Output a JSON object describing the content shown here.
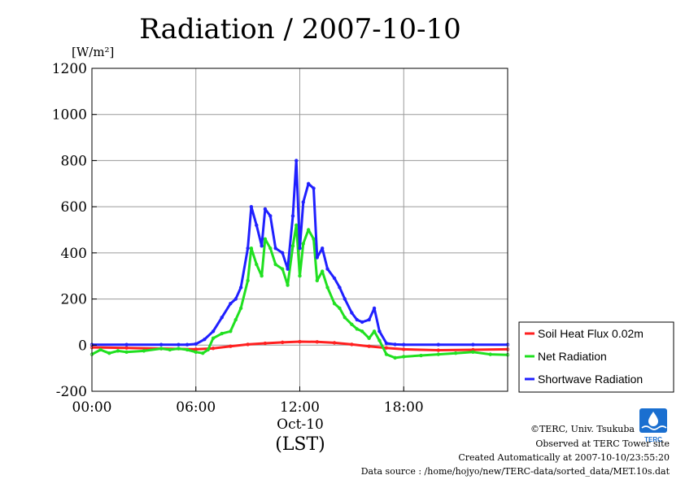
{
  "chart_data": {
    "type": "line",
    "title": "Radiation / 2007-10-10",
    "y_unit": "[W/m²]",
    "ylim": [
      -200,
      1200
    ],
    "yticks": [
      -200,
      0,
      200,
      400,
      600,
      800,
      1000,
      1200
    ],
    "xlim": [
      0,
      24
    ],
    "xticks": [
      {
        "x": 0,
        "label": "00:00"
      },
      {
        "x": 6,
        "label": "06:00"
      },
      {
        "x": 12,
        "label": "12:00"
      },
      {
        "x": 18,
        "label": "18:00"
      }
    ],
    "xlabel_date": "Oct-10",
    "xlabel": "(LST)",
    "grid": true,
    "legend_position": "right",
    "series": [
      {
        "name": "Soil Heat Flux 0.02m",
        "color": "#ff2020",
        "x": [
          0,
          2,
          4,
          6,
          7,
          8,
          9,
          10,
          11,
          12,
          13,
          14,
          15,
          16,
          17,
          18,
          20,
          22,
          24
        ],
        "values": [
          -10,
          -12,
          -15,
          -18,
          -14,
          -5,
          3,
          8,
          12,
          15,
          14,
          10,
          3,
          -5,
          -12,
          -18,
          -22,
          -20,
          -18
        ]
      },
      {
        "name": "Net Radiation",
        "color": "#20e020",
        "x": [
          0,
          0.5,
          1,
          1.5,
          2,
          3,
          4,
          4.5,
          5,
          5.5,
          6,
          6.4,
          6.7,
          7,
          7.5,
          8,
          8.3,
          8.6,
          9,
          9.2,
          9.5,
          9.8,
          10,
          10.3,
          10.6,
          11,
          11.3,
          11.6,
          11.8,
          12,
          12.2,
          12.5,
          12.8,
          13,
          13.3,
          13.6,
          14,
          14.3,
          14.6,
          15,
          15.3,
          15.6,
          16,
          16.3,
          16.6,
          17,
          17.5,
          18,
          19,
          20,
          21,
          22,
          23,
          24
        ],
        "values": [
          -40,
          -20,
          -35,
          -25,
          -30,
          -25,
          -15,
          -20,
          -15,
          -20,
          -30,
          -35,
          -20,
          30,
          50,
          60,
          110,
          160,
          280,
          420,
          350,
          300,
          460,
          420,
          350,
          330,
          260,
          430,
          520,
          300,
          440,
          500,
          460,
          280,
          320,
          250,
          180,
          160,
          120,
          90,
          70,
          60,
          30,
          60,
          20,
          -40,
          -55,
          -50,
          -45,
          -40,
          -35,
          -30,
          -40,
          -42
        ]
      },
      {
        "name": "Shortwave Radiation",
        "color": "#2020ff",
        "x": [
          0,
          2,
          4,
          5,
          5.5,
          6,
          6.5,
          7,
          7.5,
          8,
          8.3,
          8.6,
          9,
          9.2,
          9.5,
          9.8,
          10,
          10.3,
          10.6,
          11,
          11.3,
          11.6,
          11.8,
          12,
          12.2,
          12.5,
          12.8,
          13,
          13.3,
          13.6,
          14,
          14.3,
          14.6,
          15,
          15.3,
          15.6,
          16,
          16.3,
          16.6,
          17,
          17.5,
          18,
          20,
          22,
          24
        ],
        "values": [
          2,
          2,
          2,
          2,
          2,
          5,
          25,
          60,
          120,
          180,
          200,
          250,
          420,
          600,
          520,
          430,
          590,
          560,
          420,
          400,
          330,
          560,
          800,
          420,
          620,
          700,
          680,
          380,
          420,
          330,
          290,
          250,
          200,
          140,
          110,
          100,
          110,
          160,
          60,
          8,
          3,
          2,
          2,
          2,
          2
        ]
      }
    ]
  },
  "credits": {
    "copyright": "©TERC, Univ. Tsukuba",
    "observed": "Observed at TERC Tower site",
    "created": "Created Automatically at 2007-10-10/23:55:20",
    "source": "Data source : /home/hojyo/new/TERC-data/sorted_data/MET.10s.dat",
    "logo_text": "TERC",
    "logo_color": "#1a6fd0"
  }
}
